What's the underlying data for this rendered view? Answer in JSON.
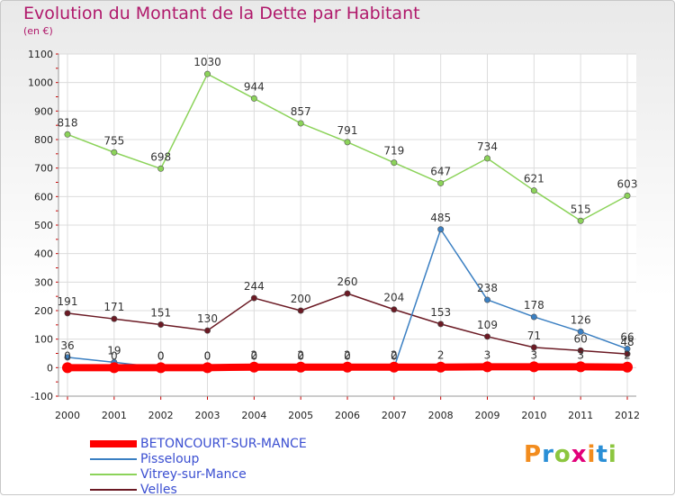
{
  "header": {
    "title": "Evolution du Montant de la Dette par Habitant",
    "subtitle": "(en €)"
  },
  "logo": {
    "text": "Proxiti",
    "colors": [
      "#f28c1e",
      "#2a8fd6",
      "#8cc63f",
      "#e2007a"
    ]
  },
  "chart_data": {
    "type": "line",
    "title": "Evolution du Montant de la Dette par Habitant",
    "subtitle": "(en €)",
    "x": [
      "2000",
      "2001",
      "2002",
      "2003",
      "2004",
      "2005",
      "2006",
      "2007",
      "2008",
      "2009",
      "2010",
      "2011",
      "2012"
    ],
    "ylim": [
      -100,
      1100
    ],
    "yticks": [
      "-100",
      "0",
      "100",
      "200",
      "300",
      "400",
      "500",
      "600",
      "700",
      "800",
      "900",
      "1000",
      "1100"
    ],
    "grid": true,
    "legend_position": "bottom-left",
    "series": [
      {
        "name": "BETONCOURT-SUR-MANCE",
        "color": "#ff0000",
        "width": 8,
        "values": [
          0,
          0,
          0,
          0,
          2,
          2,
          2,
          2,
          2,
          3,
          3,
          3,
          2
        ],
        "labels": [
          "0",
          "0",
          "0",
          "0",
          "2",
          "2",
          "2",
          "2",
          "2",
          "3",
          "3",
          "3",
          "2"
        ]
      },
      {
        "name": "Pisseloup",
        "color": "#3a7fc2",
        "width": 1.5,
        "values": [
          36,
          19,
          0,
          0,
          0,
          0,
          0,
          0,
          485,
          238,
          178,
          126,
          66
        ],
        "labels": [
          "36",
          "19",
          "0",
          "0",
          "0",
          "0",
          "0",
          "0",
          "485",
          "238",
          "178",
          "126",
          "66"
        ]
      },
      {
        "name": "Vitrey-sur-Mance",
        "color": "#8cd35a",
        "width": 1.5,
        "values": [
          818,
          755,
          698,
          1030,
          944,
          857,
          791,
          719,
          647,
          734,
          621,
          515,
          603
        ],
        "labels": [
          "818",
          "755",
          "698",
          "1030",
          "944",
          "857",
          "791",
          "719",
          "647",
          "734",
          "621",
          "515",
          "603"
        ]
      },
      {
        "name": "Velles",
        "color": "#6b1a24",
        "width": 1.5,
        "values": [
          191,
          171,
          151,
          130,
          244,
          200,
          260,
          204,
          153,
          109,
          71,
          60,
          48
        ],
        "labels": [
          "191",
          "171",
          "151",
          "130",
          "244",
          "200",
          "260",
          "204",
          "153",
          "109",
          "71",
          "60",
          "48"
        ]
      }
    ]
  }
}
